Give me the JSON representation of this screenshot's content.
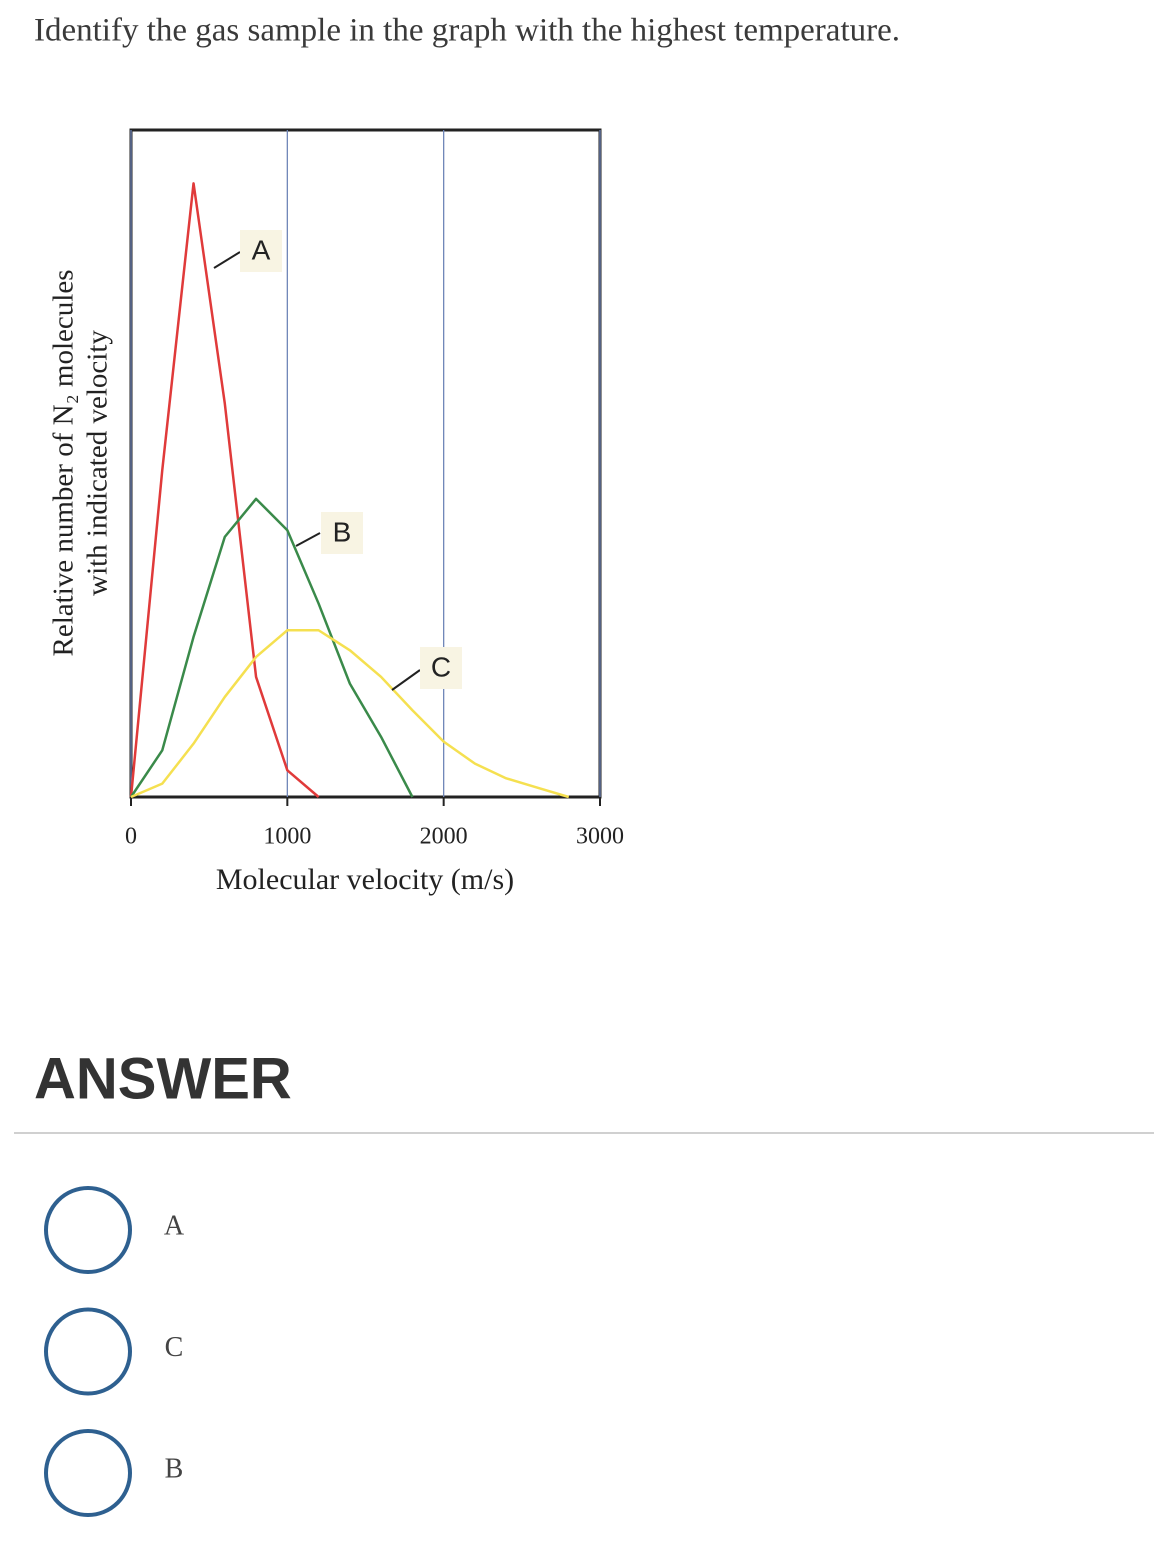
{
  "question": "Identify the gas sample in the graph with the highest temperature.",
  "chart_data": {
    "type": "line",
    "xlabel": "Molecular velocity (m/s)",
    "ylabel": [
      "Relative number of N₂ molecules",
      "with indicated velocity"
    ],
    "x": [
      0,
      200,
      400,
      600,
      800,
      1000,
      1200,
      1400,
      1600,
      1800,
      2000,
      2200,
      2400,
      2600,
      2800
    ],
    "series": [
      {
        "name": "A",
        "color": "#e03a3a",
        "values": [
          0,
          0.49,
          0.92,
          0.59,
          0.18,
          0.04,
          0,
          null,
          null,
          null,
          null,
          null,
          null,
          null,
          null
        ]
      },
      {
        "name": "B",
        "color": "#3a8a4a",
        "values": [
          0,
          0.07,
          0.24,
          0.39,
          0.447,
          0.4,
          0.29,
          0.17,
          0.09,
          0,
          null,
          null,
          null,
          null,
          null
        ]
      },
      {
        "name": "C",
        "color": "#f5e050",
        "values": [
          0,
          0.02,
          0.08,
          0.15,
          0.21,
          0.25,
          0.25,
          0.22,
          0.18,
          0.13,
          0.083,
          0.05,
          0.028,
          0.014,
          0
        ]
      }
    ],
    "xlim": [
      0,
      3000
    ],
    "xticks": [
      0,
      1000,
      2000,
      3000
    ],
    "ylim": [
      0,
      1
    ],
    "grid": true,
    "grid_color": "#6f86b8"
  },
  "answer_heading": "ANSWER",
  "options": [
    "A",
    "C",
    "B"
  ]
}
